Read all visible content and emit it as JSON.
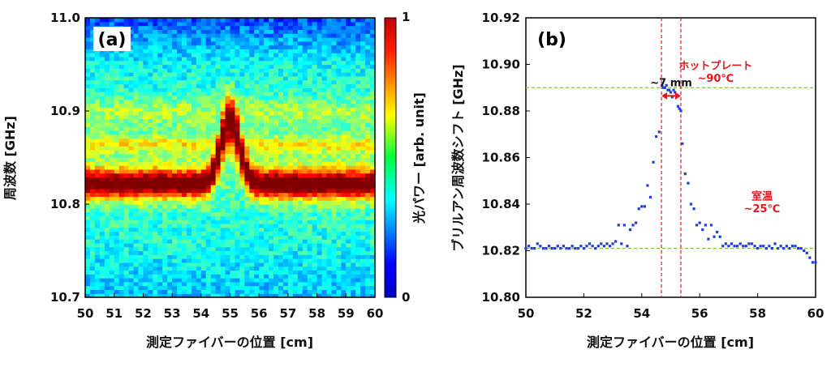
{
  "chart_data": [
    {
      "type": "heatmap",
      "panel_label": "(a)",
      "xlabel": "測定ファイバーの位置 [cm]",
      "ylabel": "周波数 [GHz]",
      "colorbar_label": "光パワー [arb. unit]",
      "xlim": [
        50,
        60
      ],
      "ylim": [
        10.7,
        11.0
      ],
      "xticks": [
        "50",
        "51",
        "52",
        "53",
        "54",
        "55",
        "56",
        "57",
        "58",
        "59",
        "60"
      ],
      "yticks": [
        "10.7",
        "10.8",
        "10.9",
        "11.0"
      ],
      "colorbar_ticks": [
        "0",
        "1"
      ],
      "colorbar_range": [
        0,
        1
      ],
      "peak_profile": {
        "baseline_ghz": 10.822,
        "hot_peak_ghz": 10.89,
        "hot_center_cm": 55.0,
        "secondary_band_ghz": 10.865
      }
    },
    {
      "type": "scatter",
      "panel_label": "(b)",
      "xlabel": "測定ファイバーの位置 [cm]",
      "ylabel": "ブリルアン周波数シフト [GHz]",
      "xlim": [
        50,
        60
      ],
      "ylim": [
        10.8,
        10.92
      ],
      "xticks": [
        "50",
        "52",
        "54",
        "56",
        "58",
        "60"
      ],
      "yticks": [
        "10.80",
        "10.82",
        "10.84",
        "10.86",
        "10.88",
        "10.90",
        "10.92"
      ],
      "reference_lines": [
        {
          "orientation": "horizontal",
          "value": 10.89,
          "style": "dashed",
          "color": "#7fc241"
        },
        {
          "orientation": "horizontal",
          "value": 10.821,
          "style": "dashed",
          "color": "#7fc241"
        },
        {
          "orientation": "vertical",
          "value": 54.68,
          "style": "dashed",
          "color": "#e8141b"
        },
        {
          "orientation": "vertical",
          "value": 55.35,
          "style": "dashed",
          "color": "#e8141b"
        }
      ],
      "span_annotation": {
        "text": "~7 mm",
        "from": 54.68,
        "to": 55.35,
        "y": 10.8865
      },
      "annotations": [
        {
          "text": "ホットプレート",
          "x": 56.55,
          "y": 10.898,
          "color": "#e8141b"
        },
        {
          "text": "~90℃",
          "x": 56.55,
          "y": 10.8925,
          "color": "#e8141b"
        },
        {
          "text": "室温",
          "x": 58.15,
          "y": 10.842,
          "color": "#e8141b"
        },
        {
          "text": "~25℃",
          "x": 58.15,
          "y": 10.8365,
          "color": "#e8141b"
        }
      ],
      "series": [
        {
          "name": "ブリルアン周波数シフト",
          "color": "#1f3fd6",
          "x": [
            50.0,
            50.1,
            50.2,
            50.3,
            50.4,
            50.5,
            50.6,
            50.7,
            50.8,
            50.9,
            51.0,
            51.1,
            51.2,
            51.3,
            51.4,
            51.5,
            51.6,
            51.7,
            51.8,
            51.9,
            52.0,
            52.1,
            52.2,
            52.3,
            52.4,
            52.5,
            52.6,
            52.7,
            52.8,
            52.9,
            53.0,
            53.1,
            53.2,
            53.3,
            53.4,
            53.5,
            53.6,
            53.7,
            53.8,
            53.9,
            54.0,
            54.1,
            54.2,
            54.3,
            54.4,
            54.5,
            54.6,
            54.7,
            54.75,
            54.8,
            54.85,
            54.9,
            54.95,
            55.0,
            55.05,
            55.1,
            55.15,
            55.2,
            55.25,
            55.3,
            55.35,
            55.4,
            55.5,
            55.6,
            55.7,
            55.8,
            55.9,
            56.0,
            56.1,
            56.2,
            56.3,
            56.4,
            56.5,
            56.6,
            56.7,
            56.8,
            56.9,
            57.0,
            57.1,
            57.2,
            57.3,
            57.4,
            57.5,
            57.6,
            57.7,
            57.8,
            57.9,
            58.0,
            58.1,
            58.2,
            58.3,
            58.4,
            58.5,
            58.6,
            58.7,
            58.8,
            58.9,
            59.0,
            59.1,
            59.2,
            59.3,
            59.4,
            59.5,
            59.6,
            59.7,
            59.8,
            59.9,
            60.0
          ],
          "y": [
            10.821,
            10.822,
            10.821,
            10.821,
            10.823,
            10.822,
            10.821,
            10.821,
            10.822,
            10.821,
            10.821,
            10.822,
            10.821,
            10.822,
            10.821,
            10.821,
            10.822,
            10.821,
            10.821,
            10.822,
            10.821,
            10.822,
            10.823,
            10.822,
            10.821,
            10.822,
            10.823,
            10.822,
            10.823,
            10.822,
            10.823,
            10.824,
            10.831,
            10.823,
            10.831,
            10.822,
            10.829,
            10.831,
            10.832,
            10.838,
            10.839,
            10.839,
            10.848,
            10.843,
            10.858,
            10.869,
            10.871,
            10.891,
            10.89,
            10.89,
            10.891,
            10.889,
            10.889,
            10.888,
            10.886,
            10.889,
            10.888,
            10.887,
            10.882,
            10.881,
            10.88,
            10.866,
            10.853,
            10.849,
            10.84,
            10.838,
            10.831,
            10.832,
            10.829,
            10.831,
            10.825,
            10.831,
            10.826,
            10.828,
            10.826,
            10.822,
            10.823,
            10.822,
            10.823,
            10.822,
            10.822,
            10.823,
            10.822,
            10.822,
            10.823,
            10.823,
            10.822,
            10.821,
            10.822,
            10.822,
            10.821,
            10.822,
            10.821,
            10.823,
            10.821,
            10.822,
            10.821,
            10.822,
            10.821,
            10.822,
            10.822,
            10.821,
            10.821,
            10.82,
            10.819,
            10.817,
            10.815,
            10.815
          ]
        }
      ]
    }
  ]
}
